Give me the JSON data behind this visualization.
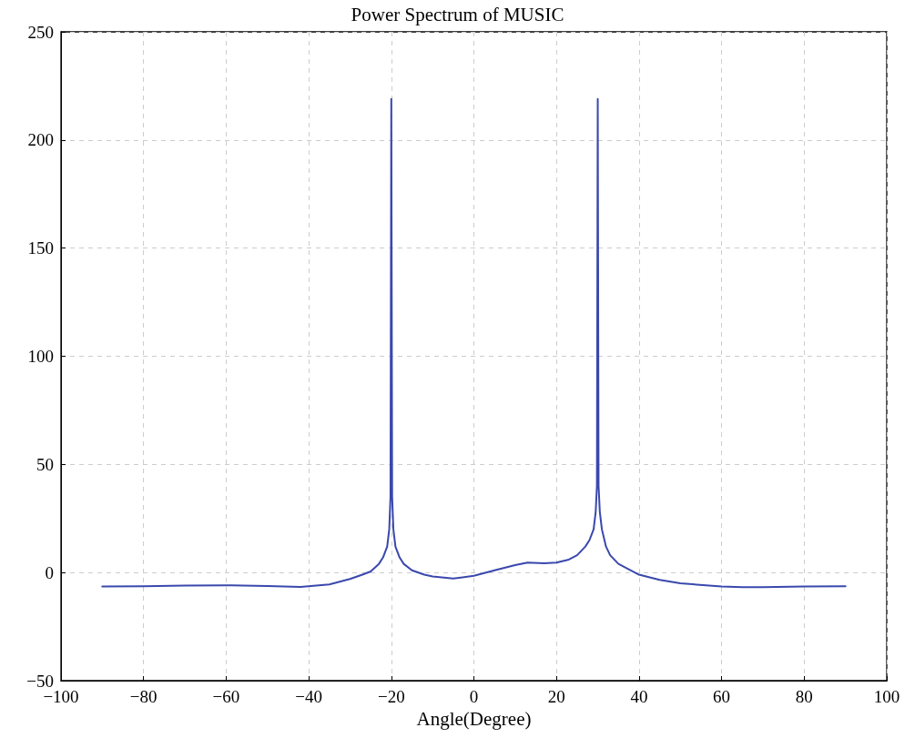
{
  "chart_data": {
    "type": "line",
    "title": "Power Spectrum of MUSIC",
    "xlabel": "Angle(Degree)",
    "xlim": [
      -100,
      100
    ],
    "xticks": [
      -100,
      -80,
      -60,
      -40,
      -20,
      0,
      20,
      40,
      60,
      80,
      100
    ],
    "ylim": [
      -50,
      250
    ],
    "yticks": [
      -50,
      0,
      50,
      100,
      150,
      200,
      250
    ],
    "grid": true,
    "marker": "none",
    "line_style": "solid",
    "series": [
      {
        "color": "#3a48ad",
        "x": [
          -90,
          -80,
          -70,
          -60,
          -50,
          -42,
          -35,
          -30,
          -27,
          -25,
          -23,
          -22,
          -21,
          -20.5,
          -20.2,
          -20,
          -19.8,
          -19.5,
          -19,
          -18,
          -17,
          -15,
          -12,
          -10,
          -5,
          0,
          5,
          10,
          13,
          17,
          20,
          23,
          25,
          27,
          28,
          29,
          29.5,
          29.8,
          30,
          30.2,
          30.5,
          31,
          32,
          33,
          35,
          40,
          45,
          50,
          60,
          65,
          70,
          80,
          90
        ],
        "values": [
          -6.5,
          -6.3,
          -6,
          -5.9,
          -6.2,
          -6.7,
          -5.5,
          -3,
          -1,
          0.5,
          4,
          7,
          12,
          20,
          35,
          219,
          35,
          20,
          12,
          7,
          4,
          1,
          -1,
          -1.8,
          -2.8,
          -1.5,
          1,
          3.4,
          4.6,
          4.3,
          4.6,
          6,
          8,
          12,
          15,
          20,
          28,
          40,
          219,
          40,
          28,
          20,
          12,
          8,
          4,
          -1,
          -3.4,
          -5,
          -6.5,
          -6.8,
          -6.8,
          -6.5,
          -6.3
        ]
      }
    ]
  }
}
